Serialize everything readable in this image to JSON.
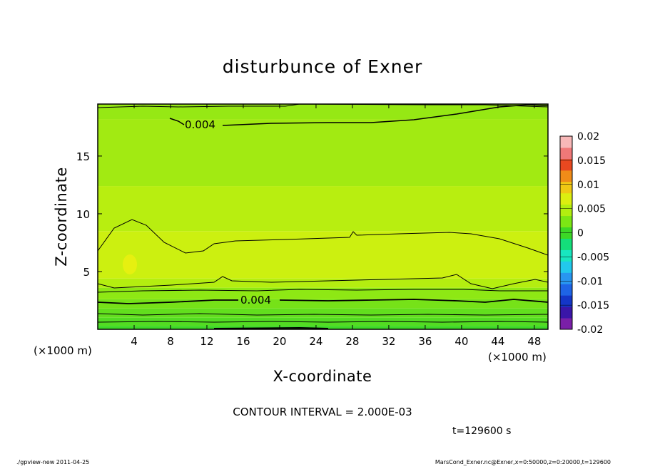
{
  "chart_data": {
    "type": "heatmap",
    "title": "disturbunce of Exner",
    "xlabel": "X-coordinate",
    "ylabel": "Z-coordinate",
    "x_unit_left": "(×1000 m)",
    "x_unit_right": "(×1000 m)",
    "xlim": [
      0,
      49.5
    ],
    "ylim": [
      0,
      19.5
    ],
    "x_ticks": [
      4,
      8,
      12,
      16,
      20,
      24,
      28,
      32,
      36,
      40,
      44,
      48
    ],
    "y_ticks": [
      5,
      10,
      15
    ],
    "contour_interval_text": "CONTOUR INTERVAL = 2.000E-03",
    "time_text": "t=129600 s",
    "footer_left": "./gpview-new   2011-04-25",
    "footer_right": "MarsCond_Exner.nc@Exner,x=0:50000,z=0:20000,t=129600",
    "contour_labels": [
      {
        "text": "0.004",
        "x": 12.5,
        "z": 18.0
      },
      {
        "text": "0.004",
        "x": 17.5,
        "z": 2.6
      }
    ],
    "colorbar": {
      "ticks": [
        "0.02",
        "0.015",
        "0.01",
        "0.005",
        "0",
        "-0.005",
        "-0.01",
        "-0.015",
        "-0.02"
      ],
      "levels": [
        -0.02,
        -0.0175,
        -0.015,
        -0.0125,
        -0.01,
        -0.0075,
        -0.005,
        -0.0025,
        0,
        0.0025,
        0.005,
        0.0075,
        0.01,
        0.0125,
        0.015,
        0.0175,
        0.02
      ],
      "colors": [
        "#7a1fa8",
        "#3a16a8",
        "#1436c8",
        "#1e64e6",
        "#2896f0",
        "#22c8ec",
        "#18e6c0",
        "#14de7a",
        "#3cd826",
        "#7ce614",
        "#b2ee10",
        "#dcee10",
        "#f0c814",
        "#f08c18",
        "#e84820",
        "#f07878",
        "#f8b8b8"
      ]
    },
    "bands": [
      {
        "from": 0.0,
        "to": 0.3,
        "value": 0.0005,
        "color": "#3cd826"
      },
      {
        "from": 0.3,
        "to": 1.0,
        "value": 0.001,
        "color": "#52dc22"
      },
      {
        "from": 1.0,
        "to": 1.8,
        "value": 0.002,
        "color": "#62de1e"
      },
      {
        "from": 1.8,
        "to": 2.6,
        "value": 0.003,
        "color": "#76e218"
      },
      {
        "from": 2.6,
        "to": 3.6,
        "value": 0.004,
        "color": "#8ee814"
      },
      {
        "from": 3.6,
        "to": 4.4,
        "value": 0.005,
        "color": "#b4ee10"
      },
      {
        "from": 4.4,
        "to": 8.5,
        "value": 0.006,
        "color": "#ccf010"
      },
      {
        "from": 8.5,
        "to": 12.4,
        "value": 0.005,
        "color": "#b8ee10"
      },
      {
        "from": 12.4,
        "to": 18.2,
        "value": 0.0045,
        "color": "#a2ea12"
      },
      {
        "from": 18.2,
        "to": 19.5,
        "value": 0.004,
        "color": "#96e814"
      }
    ]
  }
}
